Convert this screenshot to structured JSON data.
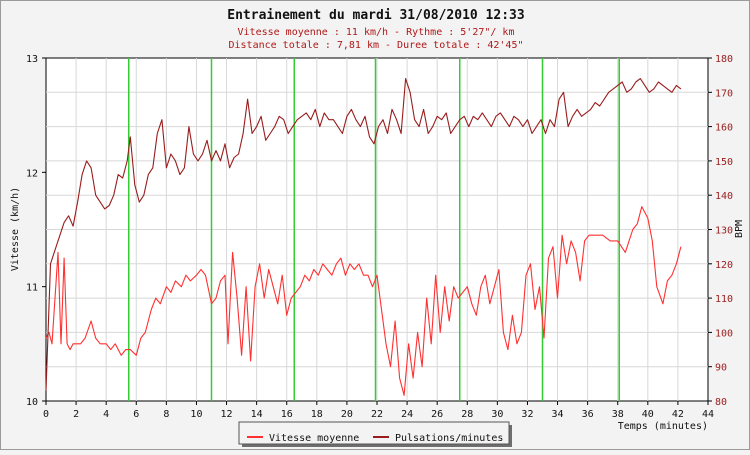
{
  "chart_data": {
    "type": "line",
    "title": "Entrainement du mardi 31/08/2010 12:33",
    "subtitle_lines": [
      "Vitesse moyenne : 11 km/h - Rythme : 5'27\"/ km",
      "Distance totale : 7,81 km - Duree totale : 42'45\""
    ],
    "xlabel": "Temps (minutes)",
    "ylabel_left": "Vitesse (km/h)",
    "ylabel_right": "BPM",
    "xlim": [
      0,
      44
    ],
    "ylim_left": [
      10,
      13
    ],
    "ylim_right": [
      80,
      180
    ],
    "x_ticks": [
      0,
      2,
      4,
      6,
      8,
      10,
      12,
      14,
      16,
      18,
      20,
      22,
      24,
      26,
      28,
      30,
      32,
      34,
      36,
      38,
      40,
      42,
      44
    ],
    "y_left_ticks": [
      10,
      11,
      12,
      13
    ],
    "y_right_ticks": [
      80,
      90,
      100,
      110,
      120,
      130,
      140,
      150,
      160,
      170,
      180
    ],
    "grid": true,
    "legend_position": "bottom",
    "lap_markers_x": [
      5.5,
      11,
      16.5,
      21.9,
      27.5,
      33,
      38.1
    ],
    "colors": {
      "speed": "#ff3030",
      "bpm": "#9a1c1c",
      "lap_marker": "#33cc33"
    },
    "series": [
      {
        "name": "Vitesse moyenne",
        "axis": "left",
        "x": [
          0,
          0.2,
          0.4,
          0.6,
          0.8,
          1.0,
          1.2,
          1.4,
          1.6,
          1.8,
          2.0,
          2.3,
          2.6,
          3.0,
          3.3,
          3.6,
          4.0,
          4.3,
          4.6,
          5.0,
          5.3,
          5.6,
          6.0,
          6.3,
          6.6,
          7.0,
          7.3,
          7.6,
          8.0,
          8.3,
          8.6,
          9.0,
          9.3,
          9.6,
          10.0,
          10.3,
          10.6,
          11.0,
          11.3,
          11.6,
          11.9,
          12.1,
          12.4,
          12.7,
          13.0,
          13.3,
          13.6,
          13.9,
          14.2,
          14.5,
          14.8,
          15.1,
          15.4,
          15.7,
          16.0,
          16.3,
          16.6,
          16.9,
          17.2,
          17.5,
          17.8,
          18.1,
          18.4,
          18.7,
          19.0,
          19.3,
          19.6,
          19.9,
          20.2,
          20.5,
          20.8,
          21.1,
          21.4,
          21.7,
          22.0,
          22.3,
          22.6,
          22.9,
          23.2,
          23.5,
          23.8,
          24.1,
          24.4,
          24.7,
          25.0,
          25.3,
          25.6,
          25.9,
          26.2,
          26.5,
          26.8,
          27.1,
          27.4,
          27.7,
          28.0,
          28.3,
          28.6,
          28.9,
          29.2,
          29.5,
          29.8,
          30.1,
          30.4,
          30.7,
          31.0,
          31.3,
          31.6,
          31.9,
          32.2,
          32.5,
          32.8,
          33.1,
          33.4,
          33.7,
          34.0,
          34.3,
          34.6,
          34.9,
          35.2,
          35.5,
          35.8,
          36.1,
          36.5,
          37.0,
          37.5,
          38.0,
          38.5,
          39.0,
          39.3,
          39.6,
          40.0,
          40.3,
          40.6,
          41.0,
          41.3,
          41.6,
          41.9,
          42.2
        ],
        "values": [
          10.55,
          10.6,
          10.5,
          10.9,
          11.3,
          10.5,
          11.25,
          10.5,
          10.45,
          10.5,
          10.5,
          10.5,
          10.55,
          10.7,
          10.55,
          10.5,
          10.5,
          10.45,
          10.5,
          10.4,
          10.45,
          10.45,
          10.4,
          10.55,
          10.6,
          10.8,
          10.9,
          10.85,
          11.0,
          10.95,
          11.05,
          11.0,
          11.1,
          11.05,
          11.1,
          11.15,
          11.1,
          10.85,
          10.9,
          11.05,
          11.1,
          10.5,
          11.3,
          10.9,
          10.4,
          11.0,
          10.35,
          11.0,
          11.2,
          10.9,
          11.15,
          11.0,
          10.85,
          11.1,
          10.75,
          10.9,
          10.95,
          11.0,
          11.1,
          11.05,
          11.15,
          11.1,
          11.2,
          11.15,
          11.1,
          11.2,
          11.25,
          11.1,
          11.2,
          11.15,
          11.2,
          11.1,
          11.1,
          11.0,
          11.1,
          10.8,
          10.5,
          10.3,
          10.7,
          10.2,
          10.05,
          10.5,
          10.2,
          10.6,
          10.3,
          10.9,
          10.5,
          11.1,
          10.6,
          11.0,
          10.7,
          11.0,
          10.9,
          10.95,
          11.0,
          10.85,
          10.75,
          11.0,
          11.1,
          10.85,
          11.0,
          11.15,
          10.6,
          10.45,
          10.75,
          10.5,
          10.6,
          11.1,
          11.2,
          10.8,
          11.0,
          10.55,
          11.25,
          11.35,
          10.9,
          11.45,
          11.2,
          11.4,
          11.3,
          11.05,
          11.4,
          11.45,
          11.45,
          11.45,
          11.4,
          11.4,
          11.3,
          11.5,
          11.55,
          11.7,
          11.6,
          11.4,
          11.0,
          10.85,
          11.05,
          11.1,
          11.2,
          11.35
        ]
      },
      {
        "name": "Pulsations/minutes",
        "axis": "right",
        "x": [
          0,
          0.3,
          0.6,
          0.9,
          1.2,
          1.5,
          1.8,
          2.1,
          2.4,
          2.7,
          3.0,
          3.3,
          3.6,
          3.9,
          4.2,
          4.5,
          4.8,
          5.1,
          5.4,
          5.6,
          5.9,
          6.2,
          6.5,
          6.8,
          7.1,
          7.4,
          7.7,
          8.0,
          8.3,
          8.6,
          8.9,
          9.2,
          9.5,
          9.8,
          10.1,
          10.4,
          10.7,
          11.0,
          11.3,
          11.6,
          11.9,
          12.2,
          12.5,
          12.8,
          13.1,
          13.4,
          13.7,
          14.0,
          14.3,
          14.6,
          14.9,
          15.2,
          15.5,
          15.8,
          16.1,
          16.4,
          16.7,
          17.0,
          17.3,
          17.6,
          17.9,
          18.2,
          18.5,
          18.8,
          19.1,
          19.4,
          19.7,
          20.0,
          20.3,
          20.6,
          20.9,
          21.2,
          21.5,
          21.8,
          22.1,
          22.4,
          22.7,
          23.0,
          23.3,
          23.6,
          23.9,
          24.2,
          24.5,
          24.8,
          25.1,
          25.4,
          25.7,
          26.0,
          26.3,
          26.6,
          26.9,
          27.2,
          27.5,
          27.8,
          28.1,
          28.4,
          28.7,
          29.0,
          29.3,
          29.6,
          29.9,
          30.2,
          30.5,
          30.8,
          31.1,
          31.4,
          31.7,
          32.0,
          32.3,
          32.6,
          32.9,
          33.2,
          33.5,
          33.8,
          34.1,
          34.4,
          34.7,
          35.0,
          35.3,
          35.6,
          35.9,
          36.2,
          36.5,
          36.8,
          37.1,
          37.4,
          37.7,
          38.0,
          38.3,
          38.6,
          38.9,
          39.2,
          39.5,
          39.8,
          40.1,
          40.4,
          40.7,
          41.0,
          41.3,
          41.6,
          41.9,
          42.2
        ],
        "values": [
          83,
          120,
          124,
          128,
          132,
          134,
          131,
          138,
          146,
          150,
          148,
          140,
          138,
          136,
          137,
          140,
          146,
          145,
          150,
          157,
          143,
          138,
          140,
          146,
          148,
          158,
          162,
          148,
          152,
          150,
          146,
          148,
          160,
          152,
          150,
          152,
          156,
          150,
          153,
          150,
          155,
          148,
          151,
          152,
          158,
          168,
          158,
          160,
          163,
          156,
          158,
          160,
          163,
          162,
          158,
          160,
          162,
          163,
          164,
          162,
          165,
          160,
          164,
          162,
          162,
          160,
          158,
          163,
          165,
          162,
          160,
          163,
          157,
          155,
          160,
          162,
          158,
          165,
          162,
          158,
          174,
          170,
          162,
          160,
          165,
          158,
          160,
          163,
          162,
          164,
          158,
          160,
          162,
          163,
          160,
          163,
          162,
          164,
          162,
          160,
          163,
          164,
          162,
          160,
          163,
          162,
          160,
          162,
          158,
          160,
          162,
          158,
          162,
          160,
          168,
          170,
          160,
          163,
          165,
          163,
          164,
          165,
          167,
          166,
          168,
          170,
          171,
          172,
          173,
          170,
          171,
          173,
          174,
          172,
          170,
          171,
          173,
          172,
          171,
          170,
          172,
          171
        ]
      }
    ]
  }
}
